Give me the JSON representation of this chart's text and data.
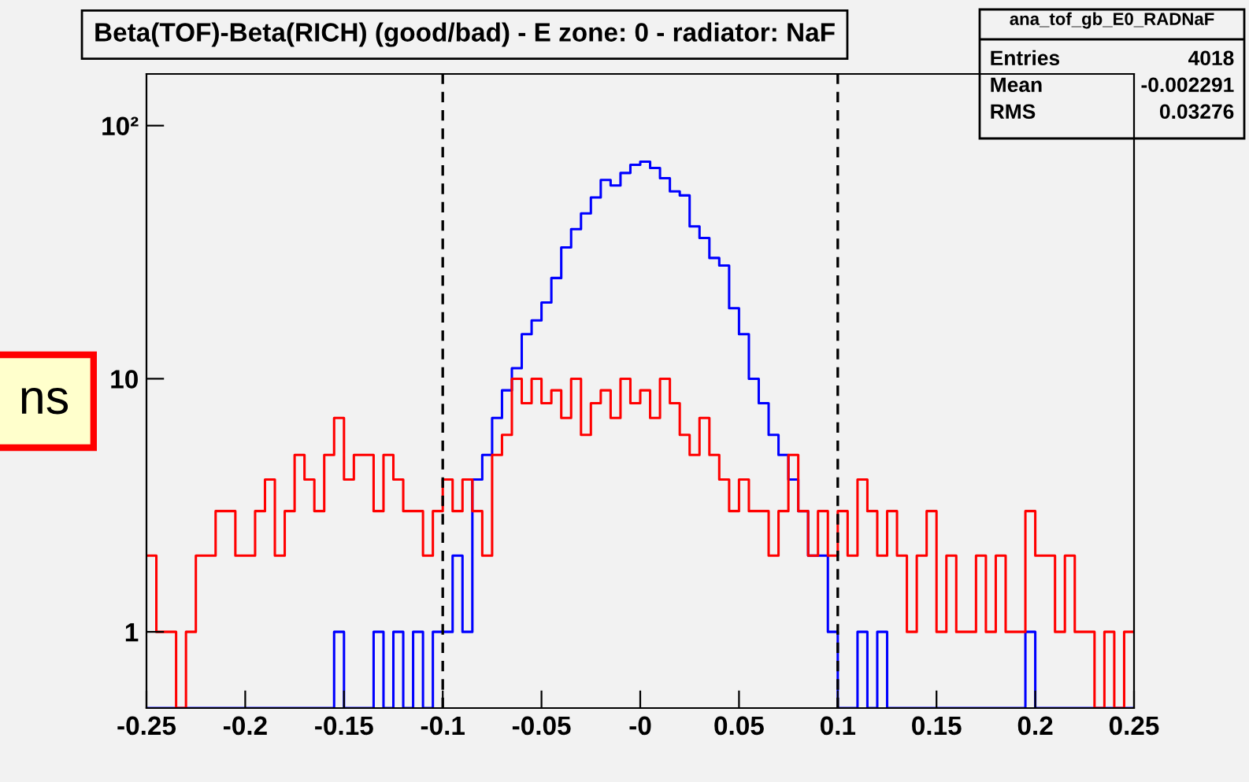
{
  "chart_data": {
    "type": "histogram",
    "bins": [
      -0.25,
      -0.245,
      -0.24,
      -0.235,
      -0.23,
      -0.225,
      -0.22,
      -0.215,
      -0.21,
      -0.205,
      -0.2,
      -0.195,
      -0.19,
      -0.185,
      -0.18,
      -0.175,
      -0.17,
      -0.165,
      -0.16,
      -0.155,
      -0.15,
      -0.145,
      -0.14,
      -0.135,
      -0.13,
      -0.125,
      -0.12,
      -0.115,
      -0.11,
      -0.105,
      -0.1,
      -0.095,
      -0.09,
      -0.085,
      -0.08,
      -0.075,
      -0.07,
      -0.065,
      -0.06,
      -0.055,
      -0.05,
      -0.045,
      -0.04,
      -0.035,
      -0.03,
      -0.025,
      -0.02,
      -0.015,
      -0.01,
      -0.005,
      0,
      0.005,
      0.01,
      0.015,
      0.02,
      0.025,
      0.03,
      0.035,
      0.04,
      0.045,
      0.05,
      0.055,
      0.06,
      0.065,
      0.07,
      0.075,
      0.08,
      0.085,
      0.09,
      0.095,
      0.1,
      0.105,
      0.11,
      0.115,
      0.12,
      0.125,
      0.13,
      0.135,
      0.14,
      0.145,
      0.15,
      0.155,
      0.16,
      0.165,
      0.17,
      0.175,
      0.18,
      0.185,
      0.19,
      0.195,
      0.2,
      0.205,
      0.21,
      0.215,
      0.22,
      0.225,
      0.23,
      0.235,
      0.24,
      0.245,
      0.25
    ],
    "title": "Beta(TOF)-Beta(RICH) (good/bad) - E zone: 0 - radiator: NaF",
    "series": [
      {
        "color": "#0000ff",
        "values": [
          null,
          null,
          null,
          null,
          null,
          null,
          null,
          null,
          null,
          null,
          null,
          null,
          null,
          null,
          null,
          null,
          null,
          null,
          null,
          1,
          null,
          null,
          null,
          1,
          null,
          1,
          null,
          1,
          null,
          1,
          1,
          2,
          1,
          4,
          5,
          7,
          9,
          11,
          15,
          17,
          20,
          25,
          33,
          39,
          45,
          52,
          61,
          58,
          65,
          70,
          72,
          68,
          62,
          55,
          53,
          40,
          36,
          30,
          28,
          19,
          15,
          10,
          8,
          6,
          5,
          4,
          3,
          2,
          2,
          1,
          null,
          null,
          1,
          null,
          1,
          null,
          null,
          null,
          null,
          null,
          null,
          null,
          null,
          null,
          null,
          null,
          null,
          null,
          null,
          1,
          null,
          null,
          null,
          null,
          null,
          null,
          null,
          null,
          null,
          null
        ]
      },
      {
        "color": "#ff0000",
        "values": [
          2,
          1,
          1,
          null,
          1,
          2,
          2,
          3,
          3,
          2,
          2,
          3,
          4,
          2,
          3,
          5,
          4,
          3,
          5,
          7,
          4,
          5,
          5,
          3,
          5,
          4,
          3,
          3,
          2,
          3,
          4,
          3,
          4,
          3,
          2,
          5,
          6,
          10,
          8,
          10,
          8,
          9,
          7,
          10,
          6,
          8,
          9,
          7,
          10,
          8,
          9,
          7,
          10,
          8,
          6,
          5,
          7,
          5,
          4,
          3,
          4,
          3,
          3,
          2,
          3,
          5,
          3,
          2,
          3,
          2,
          3,
          2,
          4,
          3,
          2,
          3,
          2,
          1,
          2,
          3,
          1,
          2,
          1,
          1,
          2,
          1,
          2,
          1,
          1,
          3,
          2,
          2,
          1,
          2,
          1,
          1,
          null,
          1,
          null,
          1
        ]
      }
    ],
    "log": "y",
    "xlim": [
      -0.25,
      0.25
    ],
    "xticks": [
      -0.25,
      -0.2,
      -0.15,
      -0.1,
      -0.05,
      {
        "value": 0,
        "label": "-0"
      },
      0.05,
      0.1,
      0.15,
      0.2,
      0.25
    ],
    "ylim": [
      0.5,
      160
    ],
    "yticks": [
      1,
      10,
      {
        "value": 100,
        "label": "10²"
      }
    ],
    "ref_lines": [
      {
        "axis": "x",
        "value": -0.1,
        "color": "#000000",
        "line_style": "dashed"
      },
      {
        "axis": "x",
        "value": 0.1,
        "color": "#000000",
        "line_style": "dashed"
      }
    ],
    "annotations": [
      "ana_tof_gb_E0_RADNaF",
      "Entries",
      "4018",
      "Mean",
      "-0.002291",
      "RMS",
      "0.03276",
      "ns"
    ]
  }
}
